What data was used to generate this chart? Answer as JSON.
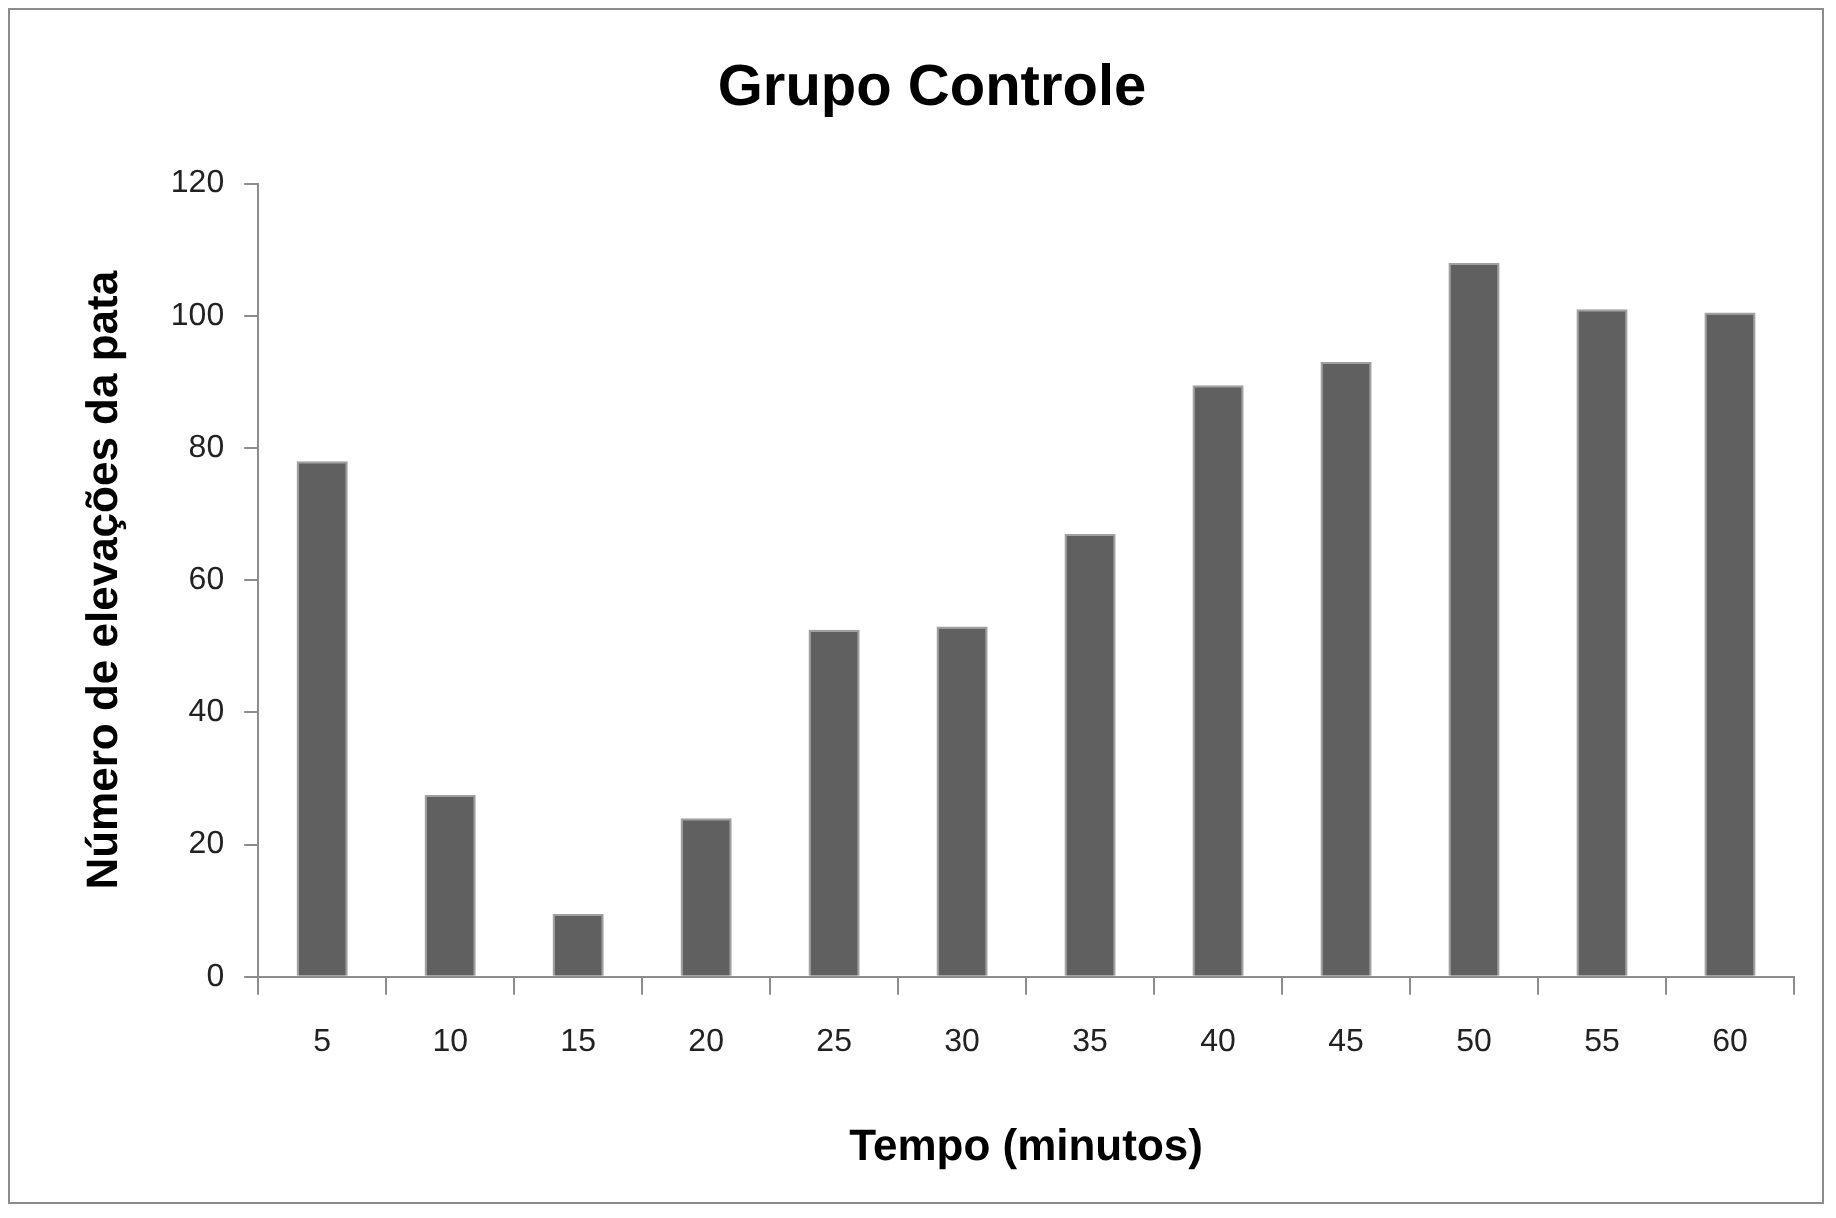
{
  "chart_data": {
    "type": "bar",
    "title": "Grupo Controle",
    "xlabel": "Tempo (minutos)",
    "ylabel": "Número de elevações da pata",
    "categories": [
      "5",
      "10",
      "15",
      "20",
      "25",
      "30",
      "35",
      "40",
      "45",
      "50",
      "55",
      "60"
    ],
    "values": [
      78,
      27.5,
      9.5,
      24,
      52.5,
      53,
      67,
      89.5,
      93,
      108,
      101,
      100.5
    ],
    "color": "#606060",
    "ylim": [
      0,
      120
    ],
    "yticks": [
      0,
      20,
      40,
      60,
      80,
      100,
      120
    ],
    "grid": false,
    "legend": false
  }
}
